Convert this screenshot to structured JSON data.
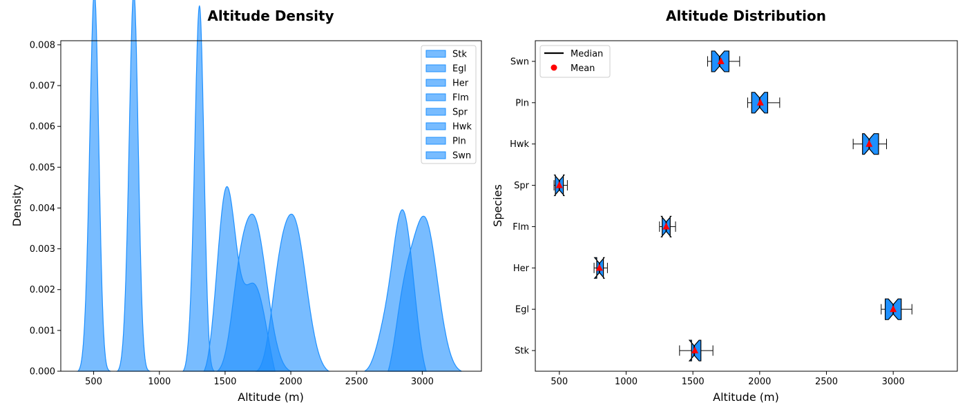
{
  "chart_data": [
    {
      "type": "area",
      "title": "Altitude Density",
      "xlabel": "Altitude (m)",
      "ylabel": "Density",
      "xlim": [
        250,
        3450
      ],
      "ylim": [
        0,
        0.0081
      ],
      "xticks": [
        500,
        1000,
        1500,
        2000,
        2500,
        3000
      ],
      "yticks": [
        0.0,
        0.001,
        0.002,
        0.003,
        0.004,
        0.005,
        0.006,
        0.007,
        0.008
      ],
      "ytick_labels": [
        "0.000",
        "0.001",
        "0.002",
        "0.003",
        "0.004",
        "0.005",
        "0.006",
        "0.007",
        "0.008"
      ],
      "grid": false,
      "legend": "top-right",
      "fill_color": "#1e90ff",
      "series": [
        {
          "name": "Stk",
          "peaks": [
            {
              "x": 1510,
              "height": 0.00438,
              "sd": 70
            },
            {
              "x": 1720,
              "height": 0.0021,
              "sd": 90
            }
          ],
          "range": [
            1340,
            1880
          ]
        },
        {
          "name": "Egl",
          "peaks": [
            {
              "x": 3020,
              "height": 0.00368,
              "sd": 95
            },
            {
              "x": 2860,
              "height": 0.0014,
              "sd": 70
            }
          ],
          "range": [
            2740,
            3300
          ]
        },
        {
          "name": "Her",
          "peaks": [
            {
              "x": 810,
              "height": 0.0077,
              "sd": 32
            },
            {
              "x": 780,
              "height": 0.0022,
              "sd": 35
            }
          ],
          "range": [
            680,
            930
          ]
        },
        {
          "name": "Flm",
          "peaks": [
            {
              "x": 1310,
              "height": 0.00752,
              "sd": 32
            },
            {
              "x": 1275,
              "height": 0.0022,
              "sd": 35
            }
          ],
          "range": [
            1180,
            1420
          ]
        },
        {
          "name": "Spr",
          "peaks": [
            {
              "x": 510,
              "height": 0.0077,
              "sd": 32
            },
            {
              "x": 480,
              "height": 0.0022,
              "sd": 35
            }
          ],
          "range": [
            380,
            630
          ]
        },
        {
          "name": "Hwk",
          "peaks": [
            {
              "x": 2850,
              "height": 0.00393,
              "sd": 80
            },
            {
              "x": 2700,
              "height": 0.0006,
              "sd": 60
            }
          ],
          "range": [
            2560,
            3030
          ]
        },
        {
          "name": "Pln",
          "peaks": [
            {
              "x": 2020,
              "height": 0.00368,
              "sd": 95
            },
            {
              "x": 1900,
              "height": 0.001,
              "sd": 60
            }
          ],
          "range": [
            1740,
            2290
          ]
        },
        {
          "name": "Swn",
          "peaks": [
            {
              "x": 1720,
              "height": 0.00368,
              "sd": 95
            },
            {
              "x": 1600,
              "height": 0.001,
              "sd": 60
            }
          ],
          "range": [
            1440,
            2000
          ]
        }
      ]
    },
    {
      "type": "box",
      "title": "Altitude Distribution",
      "xlabel": "Altitude (m)",
      "ylabel": "Species",
      "xlim": [
        320,
        3480
      ],
      "xticks": [
        500,
        1000,
        1500,
        2000,
        2500,
        3000
      ],
      "grid": false,
      "legend": "top-left",
      "box_color": "#1e90ff",
      "mean_color": "#ff0000",
      "categories": [
        "Stk",
        "Egl",
        "Her",
        "Flm",
        "Spr",
        "Hwk",
        "Pln",
        "Swn"
      ],
      "boxes": [
        {
          "name": "Stk",
          "whislo": 1400,
          "q1": 1490,
          "med": 1510,
          "q3": 1560,
          "whishi": 1650,
          "mean": 1515
        },
        {
          "name": "Egl",
          "whislo": 2910,
          "q1": 2940,
          "med": 3000,
          "q3": 3060,
          "whishi": 3140,
          "mean": 3000
        },
        {
          "name": "Her",
          "whislo": 760,
          "q1": 780,
          "med": 800,
          "q3": 830,
          "whishi": 860,
          "mean": 800
        },
        {
          "name": "Flm",
          "whislo": 1250,
          "q1": 1270,
          "med": 1300,
          "q3": 1330,
          "whishi": 1370,
          "mean": 1300
        },
        {
          "name": "Spr",
          "whislo": 460,
          "q1": 470,
          "med": 500,
          "q3": 530,
          "whishi": 560,
          "mean": 500
        },
        {
          "name": "Hwk",
          "whislo": 2700,
          "q1": 2770,
          "med": 2820,
          "q3": 2890,
          "whishi": 2950,
          "mean": 2820
        },
        {
          "name": "Pln",
          "whislo": 1910,
          "q1": 1940,
          "med": 2000,
          "q3": 2060,
          "whishi": 2150,
          "mean": 2005
        },
        {
          "name": "Swn",
          "whislo": 1610,
          "q1": 1640,
          "med": 1700,
          "q3": 1770,
          "whishi": 1850,
          "mean": 1710
        }
      ],
      "legend_items": [
        {
          "label": "Median",
          "kind": "line",
          "color": "#000000"
        },
        {
          "label": "Mean",
          "kind": "dot",
          "color": "#ff0000"
        }
      ]
    }
  ]
}
